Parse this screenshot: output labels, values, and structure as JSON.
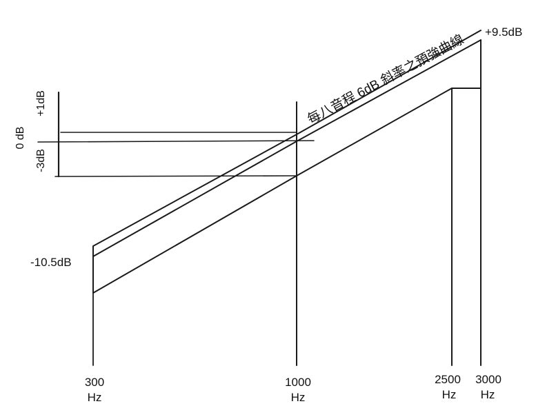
{
  "diagram": {
    "curve_label": "每八音程 6dB 斜率之預強曲線",
    "level_labels": {
      "plus_one": "+1dB",
      "zero": "0 dB",
      "minus_three": "-3dB",
      "low": "-10.5dB",
      "high": "+9.5dB"
    },
    "frequencies": [
      {
        "value": "300",
        "unit": "Hz"
      },
      {
        "value": "1000",
        "unit": "Hz"
      },
      {
        "value": "2500",
        "unit": "Hz"
      },
      {
        "value": "3000",
        "unit": "Hz"
      }
    ]
  }
}
